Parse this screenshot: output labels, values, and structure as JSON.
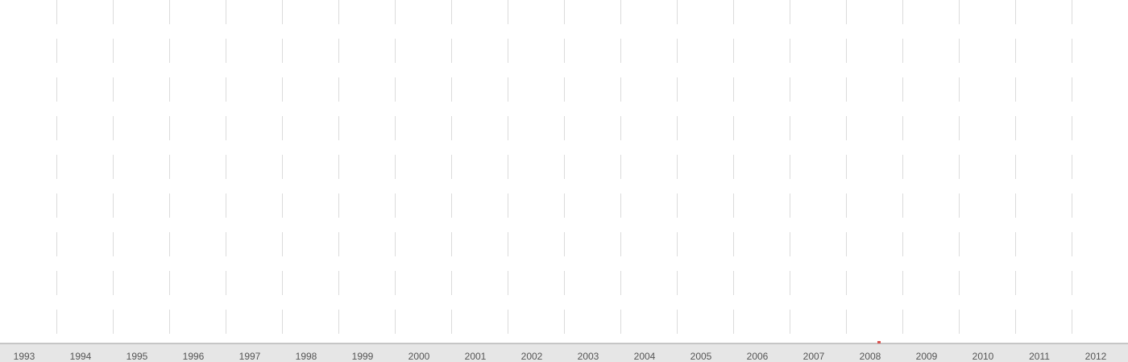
{
  "chart_data": {
    "type": "bar",
    "categories": [
      "1993",
      "1994",
      "1995",
      "1996",
      "1997",
      "1998",
      "1999",
      "2000",
      "2001",
      "2002",
      "2003",
      "2004",
      "2005",
      "2006",
      "2007",
      "2008",
      "2009",
      "2010",
      "2011",
      "2012"
    ],
    "values": [
      0,
      0,
      0,
      0,
      0,
      0,
      0,
      0,
      0,
      0,
      0,
      0,
      0,
      0,
      0,
      0.15,
      0,
      0,
      0,
      0
    ],
    "ylim": [
      0,
      100
    ],
    "grid": true,
    "title": "",
    "xlabel": "",
    "ylabel": "",
    "colors": {
      "background": "#ffffff",
      "axis_band": "#e6e6e6",
      "axis_line": "#999999",
      "grid": "#cccccc",
      "bar": "#d9534f",
      "label": "#555555"
    }
  }
}
